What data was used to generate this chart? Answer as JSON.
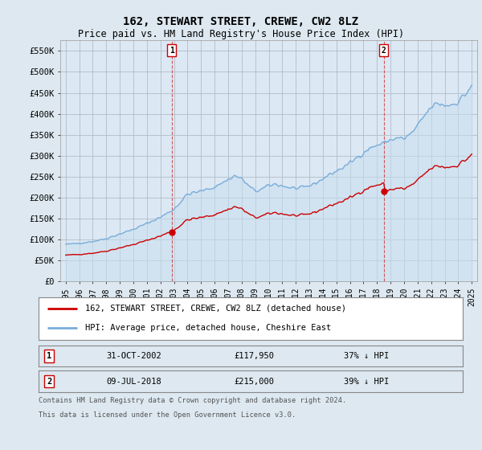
{
  "title": "162, STEWART STREET, CREWE, CW2 8LZ",
  "subtitle": "Price paid vs. HM Land Registry's House Price Index (HPI)",
  "sale1_date": "31-OCT-2002",
  "sale1_price": 117950,
  "sale1_label": "37% ↓ HPI",
  "sale2_date": "09-JUL-2018",
  "sale2_price": 215000,
  "sale2_label": "39% ↓ HPI",
  "sale1_x": 2002.833,
  "sale2_x": 2018.5,
  "legend_property": "162, STEWART STREET, CREWE, CW2 8LZ (detached house)",
  "legend_hpi": "HPI: Average price, detached house, Cheshire East",
  "footer1": "Contains HM Land Registry data © Crown copyright and database right 2024.",
  "footer2": "This data is licensed under the Open Government Licence v3.0.",
  "property_color": "#cc0000",
  "hpi_color": "#7aadda",
  "hpi_fill_color": "#c8dff0",
  "background_color": "#dde8f0",
  "plot_bg_color": "#dce8f4",
  "grid_color": "#b0bec8",
  "ylim": [
    0,
    575000
  ],
  "xlim": [
    1994.6,
    2025.4
  ],
  "yticks": [
    0,
    50000,
    100000,
    150000,
    200000,
    250000,
    300000,
    350000,
    400000,
    450000,
    500000,
    550000
  ],
  "ytick_labels": [
    "£0",
    "£50K",
    "£100K",
    "£150K",
    "£200K",
    "£250K",
    "£300K",
    "£350K",
    "£400K",
    "£450K",
    "£500K",
    "£550K"
  ],
  "xtick_years": [
    1995,
    1996,
    1997,
    1998,
    1999,
    2000,
    2001,
    2002,
    2003,
    2004,
    2005,
    2006,
    2007,
    2008,
    2009,
    2010,
    2011,
    2012,
    2013,
    2014,
    2015,
    2016,
    2017,
    2018,
    2019,
    2020,
    2021,
    2022,
    2023,
    2024,
    2025
  ]
}
